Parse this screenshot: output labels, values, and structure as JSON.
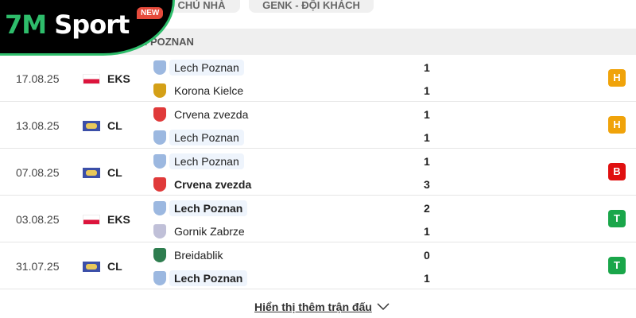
{
  "tabs": [
    {
      "label": "CHỦ NHÀ"
    },
    {
      "label": "GENK - ĐỘI KHÁCH"
    }
  ],
  "logo": {
    "part1": "7M",
    "part2": "Sport",
    "badge": "NEW"
  },
  "section_title": "LECH POZNAN",
  "colors": {
    "H": "#f0a30a",
    "B": "#e01010",
    "T": "#1aa64a",
    "accent": "#2ebd6b"
  },
  "matches": [
    {
      "date": "17.08.25",
      "league": "EKS",
      "flag": "poland-flag",
      "home": "Lech Poznan",
      "away": "Korona Kielce",
      "home_score": "1",
      "away_score": "1",
      "result": "H",
      "bold": ""
    },
    {
      "date": "13.08.25",
      "league": "CL",
      "flag": "champions-league-flag",
      "home": "Crvena zvezda",
      "away": "Lech Poznan",
      "home_score": "1",
      "away_score": "1",
      "result": "H",
      "bold": ""
    },
    {
      "date": "07.08.25",
      "league": "CL",
      "flag": "champions-league-flag",
      "home": "Lech Poznan",
      "away": "Crvena zvezda",
      "home_score": "1",
      "away_score": "3",
      "result": "B",
      "bold": "away"
    },
    {
      "date": "03.08.25",
      "league": "EKS",
      "flag": "poland-flag",
      "home": "Lech Poznan",
      "away": "Gornik Zabrze",
      "home_score": "2",
      "away_score": "1",
      "result": "T",
      "bold": "home"
    },
    {
      "date": "31.07.25",
      "league": "CL",
      "flag": "champions-league-flag",
      "home": "Breidablik",
      "away": "Lech Poznan",
      "home_score": "0",
      "away_score": "1",
      "result": "T",
      "bold": "away"
    }
  ],
  "show_more": "Hiển thị thêm trận đấu"
}
